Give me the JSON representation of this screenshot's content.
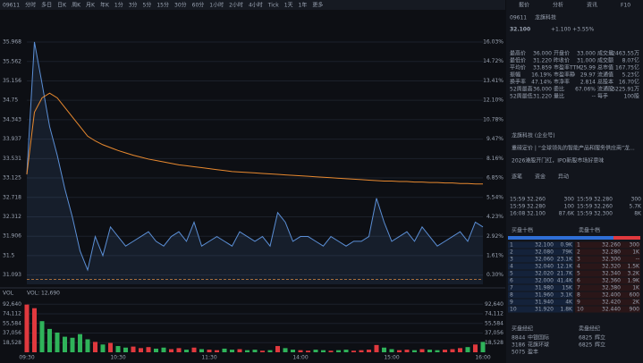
{
  "chart_data": [
    {
      "type": "line",
      "xlim": [
        0,
        60
      ],
      "ylim": [
        30.9,
        36.1
      ],
      "y2lim": [
        -0.32,
        16.45
      ],
      "ref_line": 31.0,
      "yticks": [
        35.968,
        35.562,
        35.156,
        34.75,
        34.343,
        33.937,
        33.531,
        33.125,
        32.718,
        32.312,
        31.906,
        31.5,
        31.093
      ],
      "y2ticks": [
        {
          "value": 16.03,
          "label": "16.03%"
        },
        {
          "value": 14.72,
          "label": "14.72%"
        },
        {
          "value": 13.41,
          "label": "13.41%"
        },
        {
          "value": 12.1,
          "label": "12.10%"
        },
        {
          "value": 10.78,
          "label": "10.78%"
        },
        {
          "value": 9.47,
          "label": "9.47%"
        },
        {
          "value": 8.16,
          "label": "8.16%"
        },
        {
          "value": 6.85,
          "label": "6.85%"
        },
        {
          "value": 5.54,
          "label": "5.54%"
        },
        {
          "value": 4.23,
          "label": "4.23%"
        },
        {
          "value": 2.92,
          "label": "2.92%"
        },
        {
          "value": 1.61,
          "label": "1.61%"
        },
        {
          "value": 0.3,
          "label": "0.30%"
        }
      ],
      "series": [
        {
          "color": "#5b8fd6",
          "values": [
            33.2,
            35.97,
            35.1,
            34.2,
            33.6,
            32.9,
            32.3,
            31.6,
            31.2,
            31.9,
            31.5,
            32.1,
            31.9,
            31.7,
            31.8,
            31.9,
            32.0,
            31.8,
            31.7,
            31.9,
            32.0,
            31.8,
            32.2,
            31.7,
            31.8,
            31.9,
            31.8,
            31.7,
            32.0,
            31.9,
            31.8,
            31.9,
            31.7,
            32.4,
            32.2,
            31.8,
            31.9,
            31.9,
            31.8,
            31.7,
            31.9,
            31.8,
            31.7,
            31.8,
            31.8,
            31.9,
            32.7,
            32.2,
            31.8,
            31.9,
            32.0,
            31.8,
            32.1,
            31.9,
            31.7,
            31.8,
            31.9,
            32.0,
            31.8,
            32.2,
            32.1
          ]
        },
        {
          "color": "#e8892f",
          "values": [
            33.2,
            34.5,
            34.8,
            34.9,
            34.8,
            34.6,
            34.4,
            34.2,
            34.0,
            33.9,
            33.82,
            33.76,
            33.7,
            33.65,
            33.6,
            33.56,
            33.52,
            33.49,
            33.46,
            33.43,
            33.4,
            33.38,
            33.36,
            33.34,
            33.32,
            33.3,
            33.28,
            33.26,
            33.25,
            33.24,
            33.23,
            33.22,
            33.21,
            33.2,
            33.19,
            33.18,
            33.17,
            33.16,
            33.15,
            33.14,
            33.13,
            33.12,
            33.11,
            33.1,
            33.09,
            33.08,
            33.07,
            33.06,
            33.06,
            33.05,
            33.05,
            33.04,
            33.04,
            33.03,
            33.03,
            33.02,
            33.02,
            33.01,
            33.01,
            33.0,
            33.0
          ]
        }
      ]
    },
    {
      "type": "bar",
      "title": "VOL",
      "legend_text": "VOL: 12,690",
      "up_color": "#e0393e",
      "down_color": "#2fb35a",
      "ylim": [
        0,
        100000
      ],
      "yticks": [
        {
          "value": 92640,
          "label": "92,640"
        },
        {
          "value": 74112,
          "label": "74,112"
        },
        {
          "value": 55584,
          "label": "55,584"
        },
        {
          "value": 37056,
          "label": "37,056"
        },
        {
          "value": 18528,
          "label": "18,528"
        }
      ],
      "categories": [
        "09:30",
        null,
        null,
        null,
        null,
        null,
        null,
        null,
        null,
        null,
        null,
        null,
        "10:30",
        null,
        null,
        null,
        null,
        null,
        null,
        null,
        null,
        null,
        null,
        null,
        "11:30",
        null,
        null,
        null,
        null,
        null,
        null,
        null,
        null,
        null,
        null,
        null,
        "14:00",
        null,
        null,
        null,
        null,
        null,
        null,
        null,
        null,
        null,
        null,
        null,
        "15:00",
        null,
        null,
        null,
        null,
        null,
        null,
        null,
        null,
        null,
        null,
        null,
        "16:00"
      ],
      "values": [
        92000,
        85000,
        60000,
        45000,
        38000,
        30000,
        28000,
        35000,
        25000,
        20000,
        15000,
        18000,
        12000,
        9000,
        11000,
        8000,
        10000,
        7000,
        9000,
        6000,
        8000,
        5000,
        9000,
        6000,
        5000,
        4000,
        7000,
        5000,
        6000,
        4000,
        5000,
        3000,
        4000,
        12000,
        8000,
        5000,
        4000,
        3000,
        5000,
        4000,
        3000,
        4000,
        5000,
        3000,
        4000,
        5000,
        14000,
        9000,
        6000,
        4000,
        5000,
        4000,
        6000,
        5000,
        4000,
        5000,
        6000,
        8000,
        10000,
        15000,
        20000
      ]
    }
  ],
  "toolbar": [
    "09611",
    "分时",
    "多日",
    "日K",
    "周K",
    "月K",
    "年K",
    "1分",
    "3分",
    "5分",
    "15分",
    "30分",
    "60分",
    "1小时",
    "2小时",
    "4小时",
    "Tick",
    "1天",
    "1年",
    "更多"
  ],
  "panel": {
    "tabs": [
      "报价",
      "分析",
      "资讯",
      "F10"
    ],
    "code": "09611",
    "name": "龙旗科技",
    "price": "32.100",
    "change": "+1.100  +3.55%",
    "stats": [
      [
        "最高价",
        "36.000"
      ],
      [
        "开盘价",
        "33.000"
      ],
      [
        "成交量",
        "2463.55万"
      ],
      [
        "最低价",
        "31.220"
      ],
      [
        "昨收价",
        "31.000"
      ],
      [
        "成交额",
        "8.07亿"
      ],
      [
        "平均价",
        "33.859"
      ],
      [
        "市盈率TTM",
        "25.99"
      ],
      [
        "总市值",
        "167.75亿"
      ],
      [
        "振幅",
        "16.19%"
      ],
      [
        "市盈率静",
        "29.97"
      ],
      [
        "流通值",
        "5.23亿"
      ],
      [
        "换手率",
        "47.14%"
      ],
      [
        "市净率",
        "2.814"
      ],
      [
        "总股本",
        "16.70亿"
      ],
      [
        "52周最高",
        "36.000"
      ],
      [
        "委比",
        "67.06%"
      ],
      [
        "流通股",
        "5225.91万"
      ],
      [
        "52周最低",
        "31.220"
      ],
      [
        "量比",
        "--"
      ],
      [
        "每手",
        "100股"
      ]
    ],
    "news": [
      "龙旗科技 (企业号)",
      "重磅定价 | “全球领先的智能产品和服务供应商”龙...",
      "2026港股开门红，IPO新股市场好意味"
    ],
    "trade_tabs": [
      "逐笔",
      "资金",
      "异动"
    ],
    "ticks": [
      [
        "15:59",
        "32.260",
        "300"
      ],
      [
        "15:59",
        "32.280",
        "100"
      ],
      [
        "16:08",
        "32.100",
        "87.6K"
      ]
    ],
    "ticks2": [
      [
        "15:59",
        "32.280",
        "300"
      ],
      [
        "15:59",
        "32.260",
        "5.7K"
      ],
      [
        "15:59",
        "32.300",
        "8K"
      ]
    ],
    "book_head": [
      "买盘十档",
      "卖盘十档"
    ],
    "bids": [
      [
        "1",
        "32.100",
        "0.9K"
      ],
      [
        "2",
        "32.080",
        "79K"
      ],
      [
        "3",
        "32.060",
        "23.1K"
      ],
      [
        "4",
        "32.040",
        "12.1K"
      ],
      [
        "5",
        "32.020",
        "21.7K"
      ],
      [
        "6",
        "32.000",
        "41.4K"
      ],
      [
        "7",
        "31.980",
        "15K"
      ],
      [
        "8",
        "31.960",
        "3.1K"
      ],
      [
        "9",
        "31.940",
        "4K"
      ],
      [
        "10",
        "31.920",
        "1.8K"
      ]
    ],
    "asks": [
      [
        "1",
        "32.260",
        "300"
      ],
      [
        "2",
        "32.280",
        "1K"
      ],
      [
        "3",
        "32.300",
        "--"
      ],
      [
        "4",
        "32.320",
        "1.5K"
      ],
      [
        "5",
        "32.340",
        "3.2K"
      ],
      [
        "6",
        "32.360",
        "1.9K"
      ],
      [
        "7",
        "32.380",
        "1K"
      ],
      [
        "8",
        "32.400",
        "600"
      ],
      [
        "9",
        "32.420",
        "2K"
      ],
      [
        "10",
        "32.440",
        "900"
      ]
    ],
    "broker_head": [
      "买盘经纪",
      "卖盘经纪"
    ],
    "brokers": [
      [
        "8844",
        "中银国际",
        "6825",
        "辉立"
      ],
      [
        "3186",
        "花旗环球",
        "6825",
        "辉立"
      ],
      [
        "5075",
        "盈丰",
        "",
        ""
      ]
    ]
  }
}
